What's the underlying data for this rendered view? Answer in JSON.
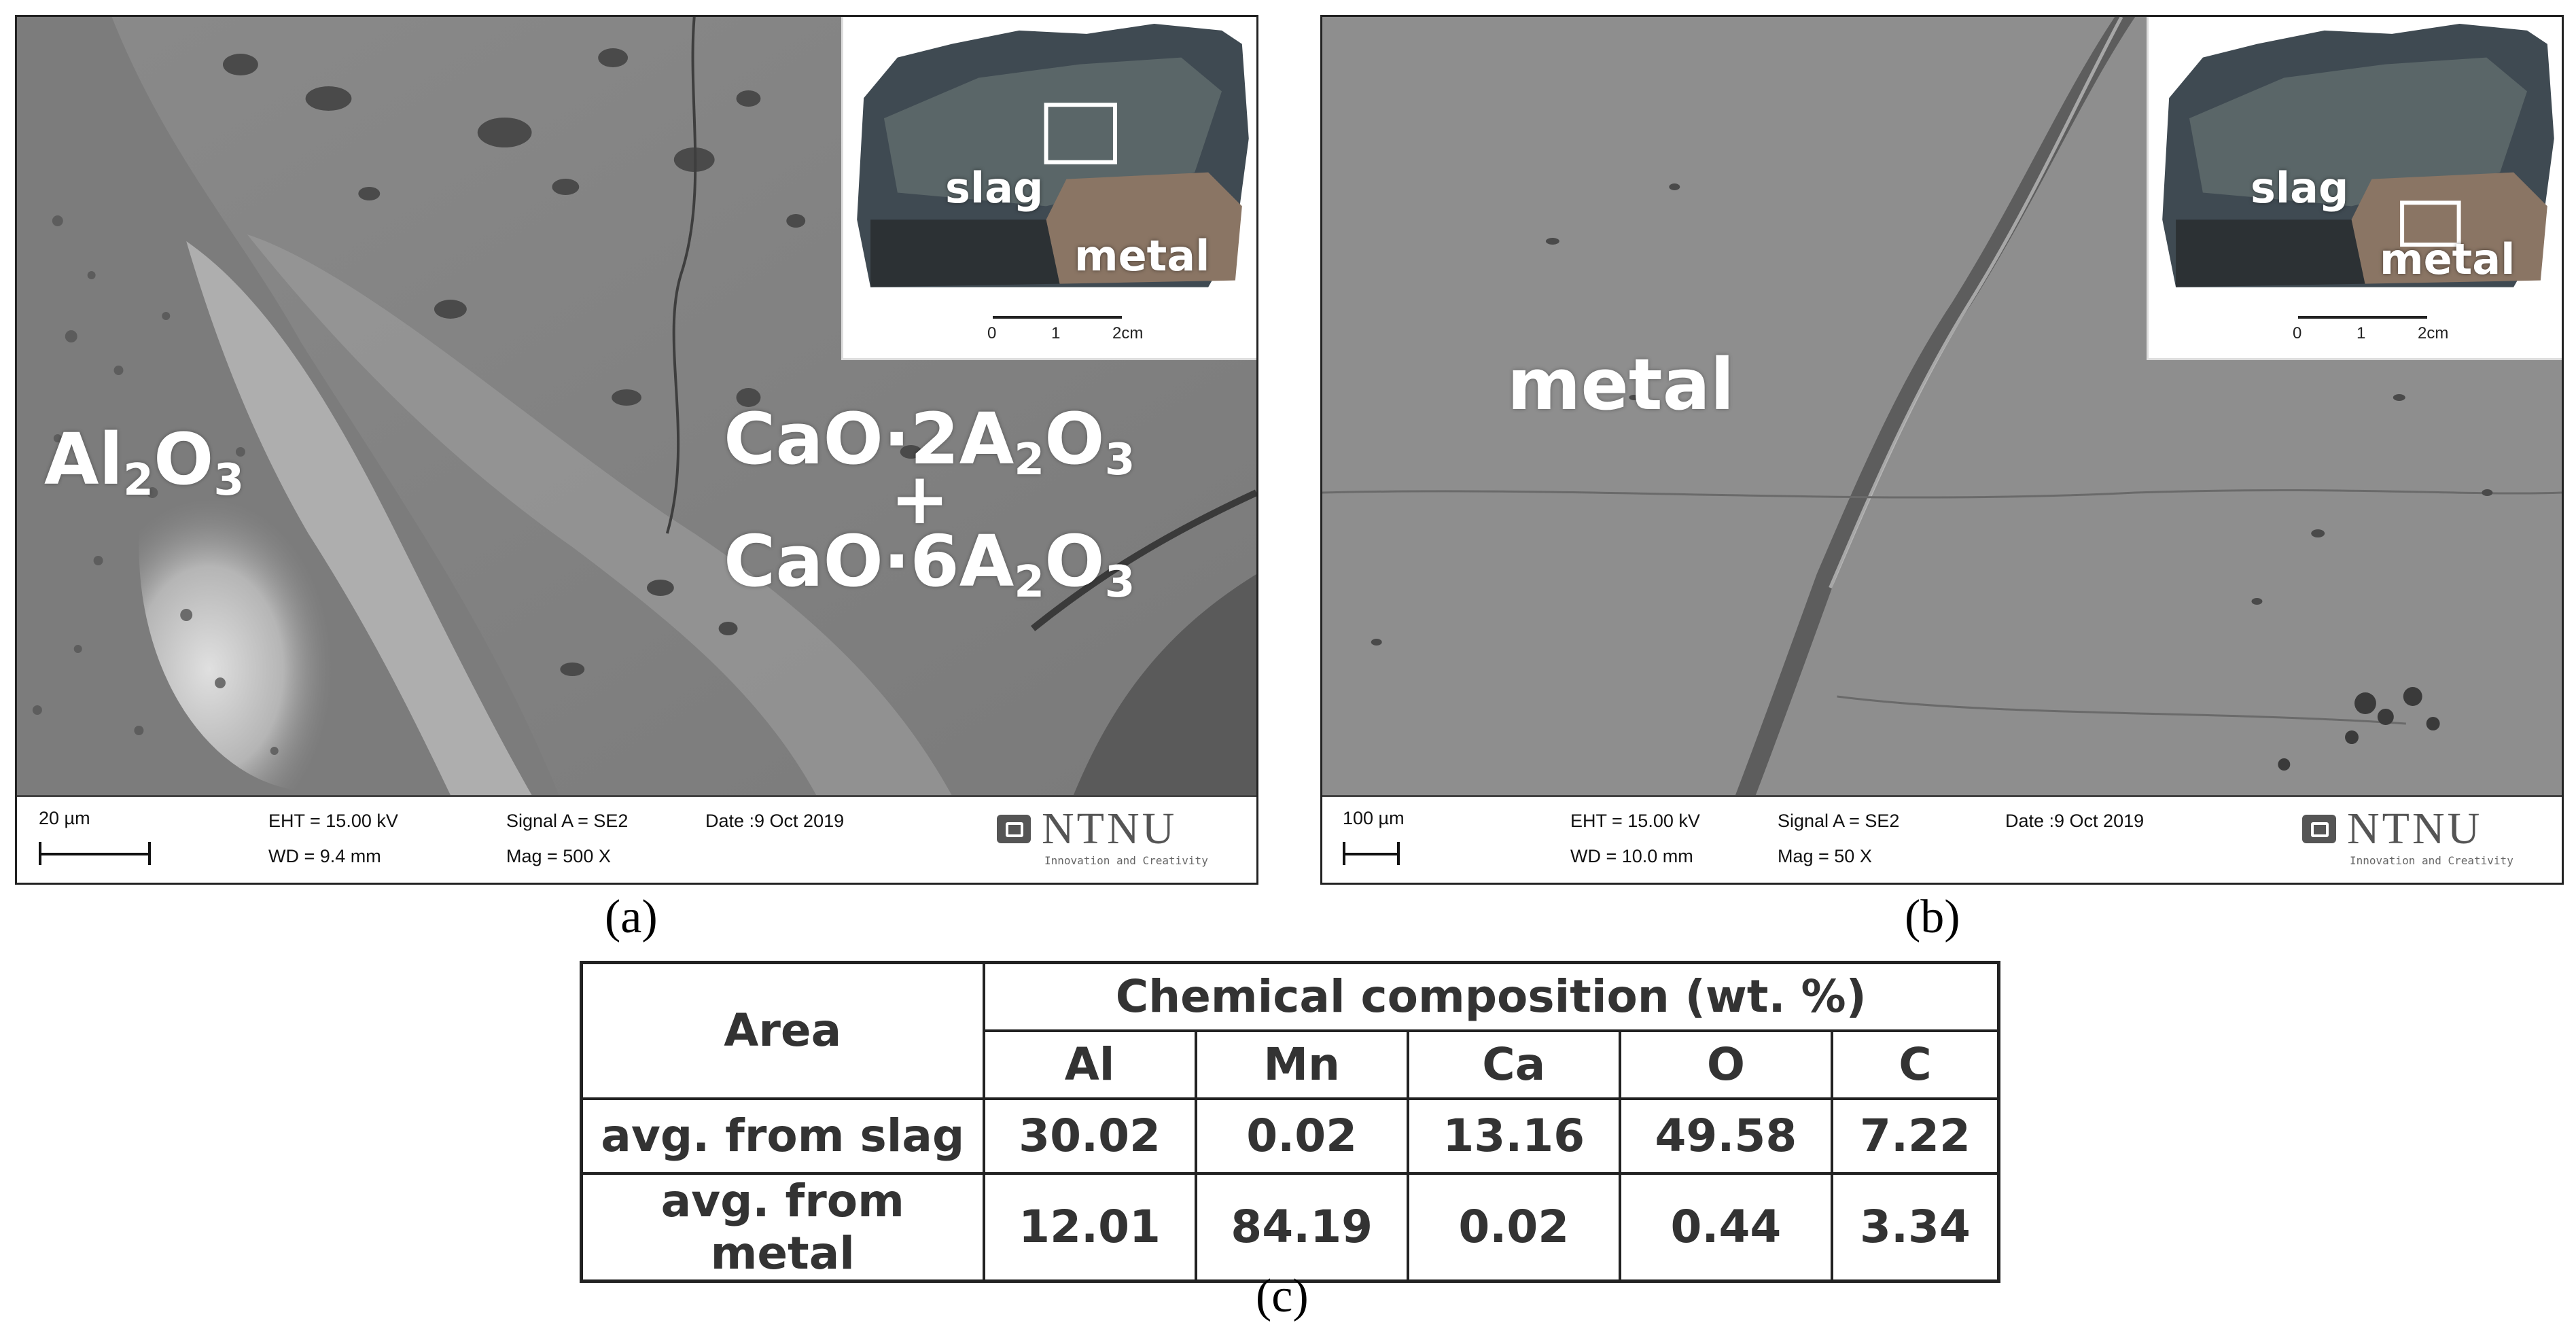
{
  "panel_a": {
    "labels": {
      "al2o3_main": "Al",
      "al2o3_sub1": "2",
      "al2o3_o": "O",
      "al2o3_sub2": "3",
      "phase1_main": "CaO·2A",
      "phase1_sub1": "2",
      "phase1_o": "O",
      "phase1_sub2": "3",
      "plus": "+",
      "phase2_main": "CaO·6A",
      "phase2_sub1": "2",
      "phase2_o": "O",
      "phase2_sub2": "3"
    },
    "inset": {
      "slag": "slag",
      "metal": "metal",
      "scale_0": "0",
      "scale_1": "1",
      "scale_2": "2cm"
    },
    "databar": {
      "scale": "20 µm",
      "eht": "EHT = 15.00 kV",
      "wd": "WD =  9.4 mm",
      "signal": "Signal A = SE2",
      "mag": "Mag =    500 X",
      "date": "Date :9 Oct 2019"
    },
    "logo": {
      "name": "NTNU",
      "tagline": "Innovation and Creativity"
    },
    "caption": "(a)"
  },
  "panel_b": {
    "labels": {
      "metal": "metal"
    },
    "inset": {
      "slag": "slag",
      "metal": "metal",
      "scale_0": "0",
      "scale_1": "1",
      "scale_2": "2cm"
    },
    "databar": {
      "scale": "100 µm",
      "eht": "EHT = 15.00 kV",
      "wd": "WD = 10.0 mm",
      "signal": "Signal A = SE2",
      "mag": "Mag =      50 X",
      "date": "Date :9 Oct 2019"
    },
    "logo": {
      "name": "NTNU",
      "tagline": "Innovation and Creativity"
    },
    "caption": "(b)"
  },
  "table": {
    "header_area": "Area",
    "header_group": "Chemical composition (wt. %)",
    "columns": [
      "Al",
      "Mn",
      "Ca",
      "O",
      "C"
    ],
    "rows": [
      {
        "label": "avg. from slag",
        "values": [
          "30.02",
          "0.02",
          "13.16",
          "49.58",
          "7.22"
        ]
      },
      {
        "label": "avg. from metal",
        "values": [
          "12.01",
          "84.19",
          "0.02",
          "0.44",
          "3.34"
        ]
      }
    ],
    "caption": "(c)"
  }
}
